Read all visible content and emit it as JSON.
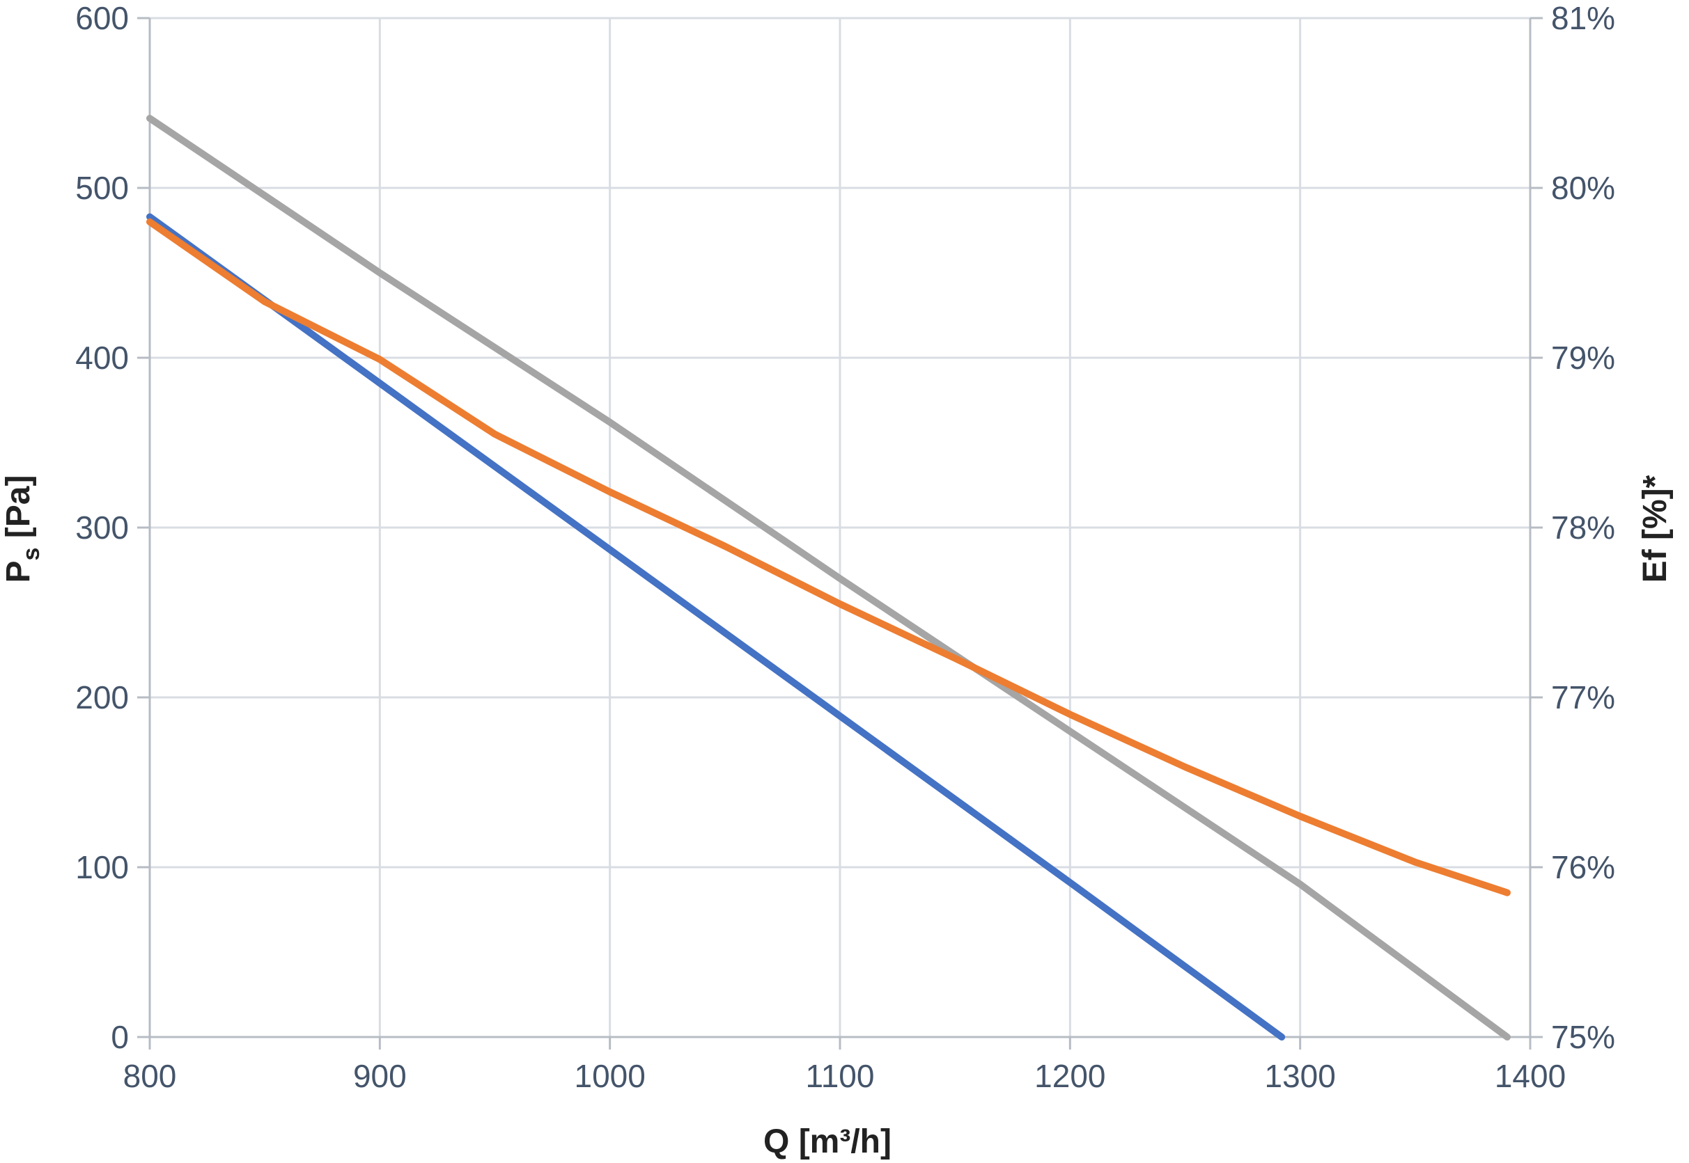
{
  "chart_data": {
    "type": "line",
    "xlabel": "Q [m³/h]",
    "ylabel": "Ps [Pa]",
    "ylabel_main": "P",
    "ylabel_sub": "s",
    "ylabel_rest": " [Pa]",
    "y2label": "Ef [%]*",
    "xlim": [
      800,
      1400
    ],
    "ylim": [
      0,
      600
    ],
    "y2lim": [
      75,
      81
    ],
    "x_ticks": [
      800,
      900,
      1000,
      1100,
      1200,
      1300,
      1400
    ],
    "y_ticks": [
      0,
      100,
      200,
      300,
      400,
      500,
      600
    ],
    "y2_ticks": [
      "75%",
      "76%",
      "77%",
      "78%",
      "79%",
      "80%",
      "81%"
    ],
    "grid": true,
    "series": [
      {
        "axis": "left",
        "color": "#4472c4",
        "x": [
          800,
          900,
          1000,
          1100,
          1200,
          1292
        ],
        "y": [
          483,
          385,
          287,
          189,
          91,
          0
        ]
      },
      {
        "axis": "right",
        "color": "#ed7d31",
        "x": [
          800,
          850,
          900,
          950,
          1000,
          1050,
          1100,
          1150,
          1200,
          1250,
          1300,
          1350,
          1390
        ],
        "y": [
          79.8,
          79.33,
          78.99,
          78.55,
          78.21,
          77.89,
          77.55,
          77.23,
          76.9,
          76.59,
          76.3,
          76.03,
          75.85
        ]
      },
      {
        "axis": "left",
        "color": "#a5a5a5",
        "x": [
          800,
          900,
          1000,
          1100,
          1200,
          1300,
          1390
        ],
        "y": [
          541,
          450,
          362,
          270,
          180,
          90,
          0
        ]
      }
    ]
  }
}
